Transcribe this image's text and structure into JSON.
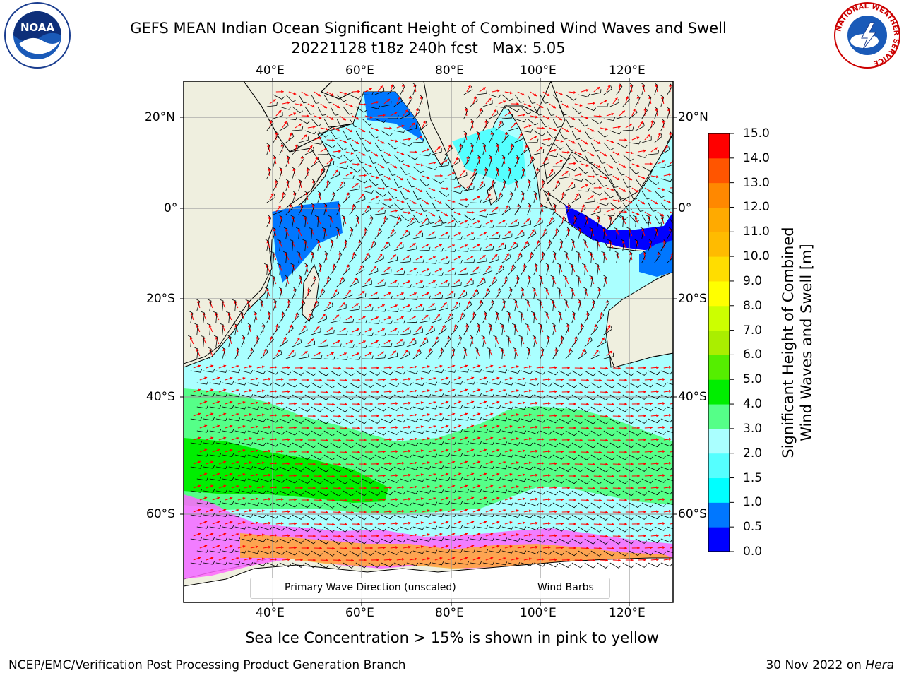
{
  "header": {
    "title": "GEFS MEAN Indian Ocean Significant Height of Combined Wind Waves and Swell",
    "subtitle": "20221128 t18z 240h fcst   Max: 5.05"
  },
  "logos": {
    "left": {
      "icon": "noaa-logo",
      "text": "NOAA"
    },
    "right": {
      "icon": "nws-logo",
      "ring_text": "NATIONAL WEATHER SERVICE"
    }
  },
  "map": {
    "lon_ticks": [
      "40°E",
      "60°E",
      "80°E",
      "100°E",
      "120°E"
    ],
    "lat_ticks": [
      "20°N",
      "0°",
      "20°S",
      "40°S",
      "60°S"
    ],
    "colors": {
      "land": "#efefdf",
      "sea_ice_colors": [
        "#ff66ff",
        "#ffaa33",
        "#ffdd55"
      ],
      "wave_direction": "#ff0000",
      "wind_barb": "#000000"
    },
    "legend": {
      "wave_label": "Primary Wave Direction (unscaled)",
      "wind_label": "Wind Barbs"
    }
  },
  "colorbar": {
    "label_line1": "Significant Height of Combined",
    "label_line2": "Wind Waves and Swell [m]",
    "ticks": [
      "15.0",
      "14.0",
      "13.0",
      "12.0",
      "11.0",
      "10.0",
      "9.0",
      "8.0",
      "7.0",
      "6.0",
      "5.0",
      "4.0",
      "3.0",
      "2.0",
      "1.5",
      "1.0",
      "0.5",
      "0.0"
    ],
    "colors_bottom_to_top": [
      "#0000ff",
      "#0077ff",
      "#00ffff",
      "#55ffff",
      "#aaffff",
      "#55ff88",
      "#00ee00",
      "#55ee00",
      "#aaee00",
      "#ccff00",
      "#ffff00",
      "#ffdd00",
      "#ffbb00",
      "#ffaa00",
      "#ff8800",
      "#ff5500",
      "#ff0000"
    ]
  },
  "caption": "Sea Ice Concentration > 15% is shown in pink to yellow",
  "footer": {
    "left": "NCEP/EMC/Verification Post Processing Product Generation Branch",
    "right_prefix": "30 Nov 2022 on ",
    "right_host": "Hera"
  }
}
